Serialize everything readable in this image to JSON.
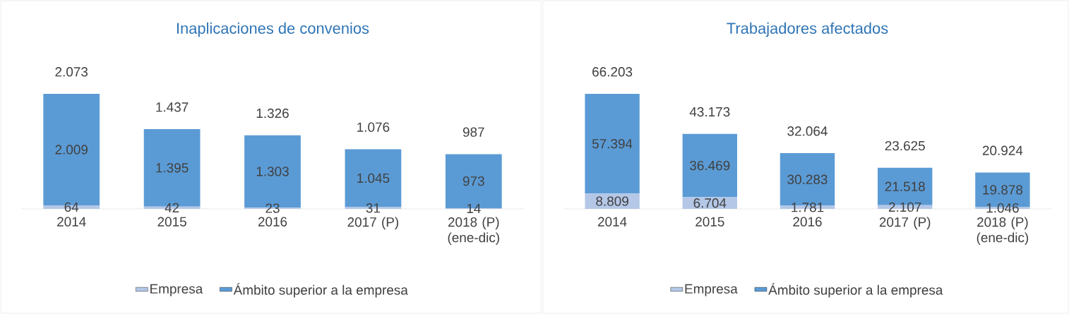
{
  "chart_data": [
    {
      "type": "bar",
      "stacked": true,
      "title": "Inaplicaciones de convenios",
      "categories": [
        "2014",
        "2015",
        "2016",
        "2017 (P)",
        "2018 (P) (ene-dic)"
      ],
      "series": [
        {
          "name": "Empresa",
          "color": "#b4c7e7",
          "values": [
            64,
            42,
            23,
            31,
            14
          ],
          "value_labels": [
            "64",
            "42",
            "23",
            "31",
            "14"
          ]
        },
        {
          "name": "Ámbito superior a la empresa",
          "color": "#5b9bd5",
          "values": [
            2009,
            1395,
            1303,
            1045,
            973
          ],
          "value_labels": [
            "2.009",
            "1.395",
            "1.303",
            "1.045",
            "973"
          ]
        }
      ],
      "totals": [
        "2.073",
        "1.437",
        "1.326",
        "1.076",
        "987"
      ],
      "legend": "bottom"
    },
    {
      "type": "bar",
      "stacked": true,
      "title": "Trabajadores afectados",
      "categories": [
        "2014",
        "2015",
        "2016",
        "2017 (P)",
        "2018 (P) (ene-dic)"
      ],
      "series": [
        {
          "name": "Empresa",
          "color": "#b4c7e7",
          "values": [
            8809,
            6704,
            1781,
            2107,
            1046
          ],
          "value_labels": [
            "8.809",
            "6.704",
            "1.781",
            "2.107",
            "1.046"
          ]
        },
        {
          "name": "Ámbito superior a la empresa",
          "color": "#5b9bd5",
          "values": [
            57394,
            36469,
            30283,
            21518,
            19878
          ],
          "value_labels": [
            "57.394",
            "36.469",
            "30.283",
            "21.518",
            "19.878"
          ]
        }
      ],
      "totals": [
        "66.203",
        "43.173",
        "32.064",
        "23.625",
        "20.924"
      ],
      "legend": "bottom"
    }
  ]
}
